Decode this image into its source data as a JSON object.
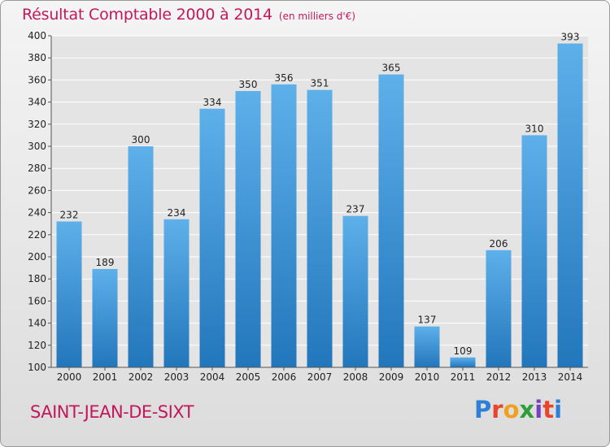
{
  "header": {
    "title": "Résultat Comptable 2000 à 2014",
    "subtitle": "(en milliers d'€)"
  },
  "footer": {
    "commune": "SAINT-JEAN-DE-SIXT",
    "logo_text": "Proxiti",
    "logo_colors": [
      "#2e7fd6",
      "#e8462a",
      "#f0a020",
      "#2e9f3a",
      "#7a3fc0",
      "#e8462a",
      "#2e7fd6"
    ]
  },
  "colors": {
    "bar_light": "#5eb0ea",
    "bar_dark": "#2276bb",
    "title": "#c2185b",
    "grid": "#ffffff"
  },
  "chart_data": {
    "type": "bar",
    "title": "Résultat Comptable 2000 à 2014",
    "subtitle": "(en milliers d'€)",
    "categories": [
      "2000",
      "2001",
      "2002",
      "2003",
      "2004",
      "2005",
      "2006",
      "2007",
      "2008",
      "2009",
      "2010",
      "2011",
      "2012",
      "2013",
      "2014"
    ],
    "values": [
      232,
      189,
      300,
      234,
      334,
      350,
      356,
      351,
      237,
      365,
      137,
      109,
      206,
      310,
      393
    ],
    "ylim": [
      100,
      400
    ],
    "yticks": [
      100,
      120,
      140,
      160,
      180,
      200,
      220,
      240,
      260,
      280,
      300,
      320,
      340,
      360,
      380,
      400
    ],
    "grid": true,
    "data_labels": true
  }
}
